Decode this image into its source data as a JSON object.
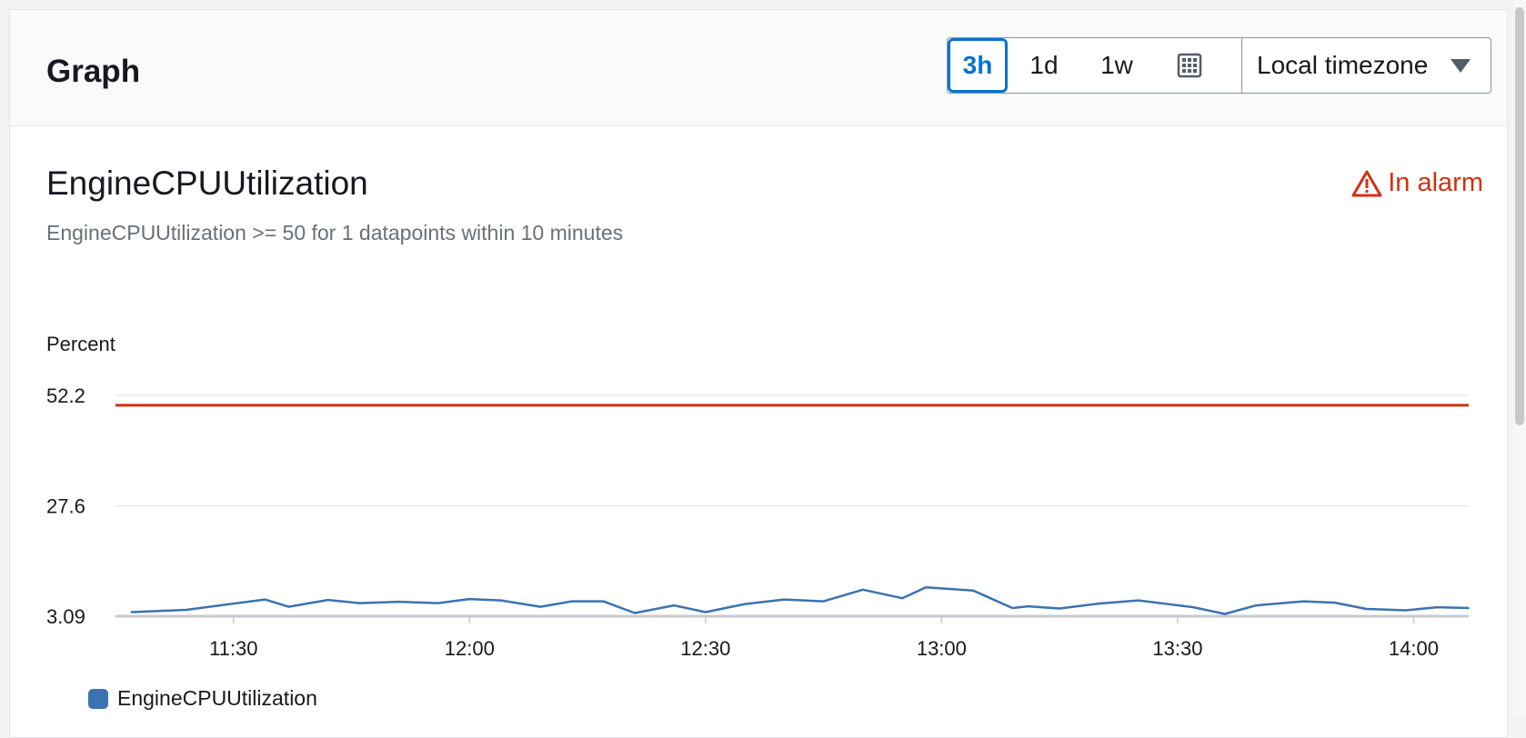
{
  "panel": {
    "title": "Graph",
    "time_ranges": [
      "3h",
      "1d",
      "1w"
    ],
    "selected_range": "3h",
    "timezone": "Local timezone"
  },
  "metric": {
    "title": "EngineCPUUtilization",
    "description": "EngineCPUUtilization >= 50 for 1 datapoints within 10 minutes",
    "alarm_state": "In alarm"
  },
  "colors": {
    "series": "#3b73b0",
    "threshold": "#d13212",
    "selected": "#0972d3"
  },
  "icons": {
    "calendar": "calendar-icon",
    "dropdown": "chevron-down-icon",
    "warning": "warning-triangle-icon"
  },
  "chart_data": {
    "type": "line",
    "ylabel": "Percent",
    "yticks": [
      "3.09",
      "27.6",
      "52.2"
    ],
    "ylim": [
      3.09,
      52.2
    ],
    "xticks": [
      "11:30",
      "12:00",
      "12:30",
      "13:00",
      "13:30",
      "14:00"
    ],
    "xlim_minutes": [
      675,
      847
    ],
    "threshold": 50,
    "legend": "top-left below chart",
    "series": [
      {
        "name": "EngineCPUUtilization",
        "x_minutes": [
          677,
          684,
          694,
          697,
          702,
          706,
          711,
          716,
          720,
          724,
          729,
          733,
          737,
          741,
          746,
          750,
          755,
          760,
          765,
          770,
          775,
          778,
          784,
          789,
          791,
          795,
          800,
          805,
          812,
          816,
          820,
          826,
          830,
          834,
          839,
          843,
          847
        ],
        "values": [
          4.0,
          4.5,
          6.8,
          5.2,
          6.7,
          6.0,
          6.3,
          6.0,
          6.9,
          6.6,
          5.2,
          6.4,
          6.4,
          3.8,
          5.5,
          4.0,
          5.8,
          6.8,
          6.4,
          9.0,
          7.1,
          9.5,
          8.8,
          4.9,
          5.3,
          4.8,
          5.9,
          6.6,
          5.1,
          3.6,
          5.5,
          6.4,
          6.1,
          4.7,
          4.4,
          5.1,
          4.9
        ]
      }
    ]
  }
}
